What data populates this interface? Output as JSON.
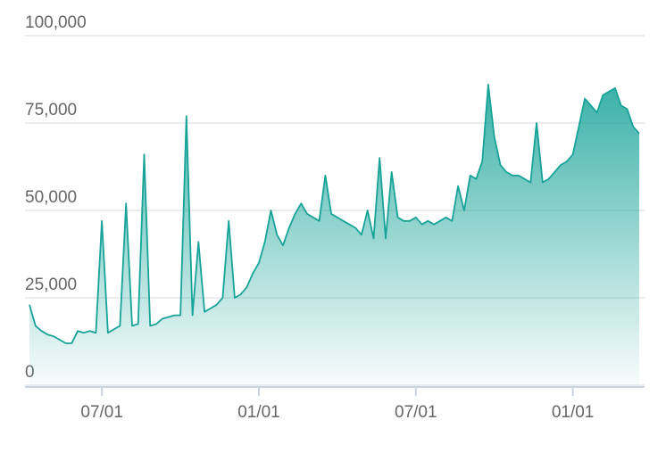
{
  "chart_data": {
    "type": "area",
    "categories": [
      null,
      null,
      null,
      null,
      null,
      null,
      null,
      null,
      null,
      null,
      null,
      null,
      "07/01",
      null,
      null,
      null,
      null,
      null,
      null,
      null,
      null,
      null,
      null,
      null,
      null,
      null,
      null,
      null,
      null,
      null,
      null,
      null,
      null,
      null,
      null,
      null,
      null,
      null,
      "01/01",
      null,
      null,
      null,
      null,
      null,
      null,
      null,
      null,
      null,
      null,
      null,
      null,
      null,
      null,
      null,
      null,
      null,
      null,
      null,
      null,
      null,
      null,
      null,
      null,
      null,
      "07/01",
      null,
      null,
      null,
      null,
      null,
      null,
      null,
      null,
      null,
      null,
      null,
      null,
      null,
      null,
      null,
      null,
      null,
      null,
      null,
      null,
      null,
      null,
      null,
      null,
      null,
      "01/01",
      null,
      null,
      null,
      null,
      null,
      null,
      null,
      null,
      null,
      null,
      null
    ],
    "values": [
      23000,
      17000,
      15500,
      14500,
      14000,
      13000,
      12000,
      12000,
      15500,
      15000,
      15500,
      15000,
      47000,
      15000,
      16000,
      17000,
      52000,
      17000,
      17500,
      66000,
      17000,
      17500,
      19000,
      19500,
      20000,
      20000,
      77000,
      20000,
      41000,
      21000,
      22000,
      23000,
      25000,
      47000,
      25000,
      26000,
      28000,
      32000,
      35000,
      41000,
      50000,
      43000,
      40000,
      45000,
      49000,
      52000,
      49000,
      48000,
      47000,
      60000,
      49000,
      48000,
      47000,
      46000,
      45000,
      43000,
      50000,
      42000,
      65000,
      42000,
      61000,
      48000,
      47000,
      47000,
      48000,
      46000,
      47000,
      46000,
      47000,
      48000,
      47000,
      57000,
      50000,
      60000,
      59000,
      64000,
      86000,
      71000,
      63000,
      61000,
      60000,
      60000,
      59000,
      58000,
      75000,
      58000,
      59000,
      61000,
      63000,
      64000,
      66000,
      74000,
      82000,
      80000,
      78000,
      83000,
      84000,
      85000,
      80000,
      79000,
      74000,
      72000
    ],
    "color": "#17a398",
    "ylim": [
      0,
      100000
    ],
    "yticks": [
      0,
      {
        "value": 25000,
        "label": "25,000"
      },
      {
        "value": 50000,
        "label": "50,000"
      },
      {
        "value": 75000,
        "label": "75,000"
      },
      {
        "value": 100000,
        "label": "100,000"
      }
    ],
    "grid": true
  }
}
